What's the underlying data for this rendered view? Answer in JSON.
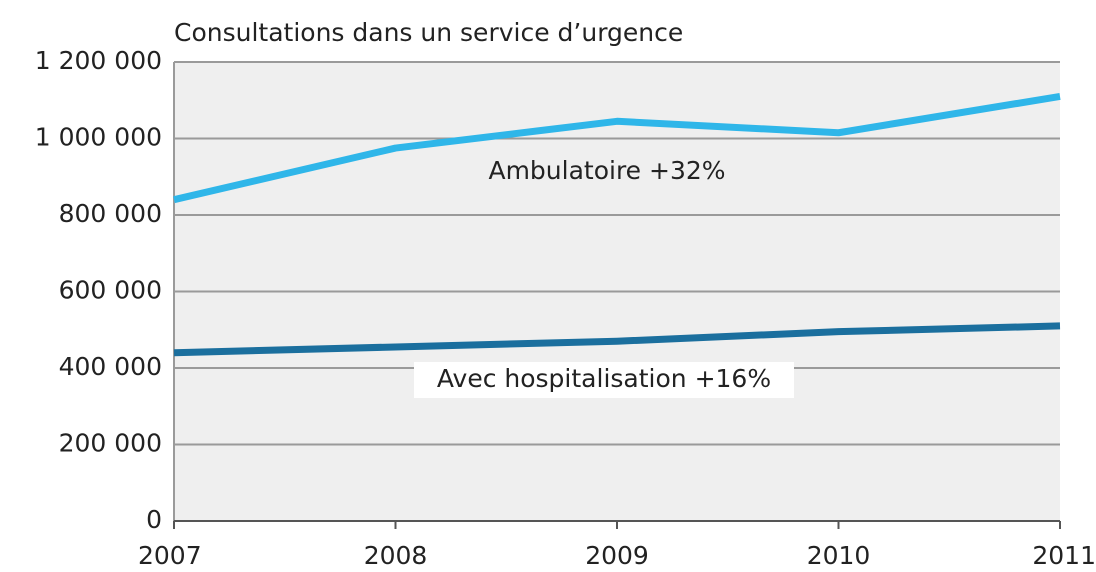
{
  "chart_data": {
    "type": "line",
    "title": "Consultations dans un service d’urgence",
    "categories": [
      "2007",
      "2008",
      "2009",
      "2010",
      "2011"
    ],
    "series": [
      {
        "name": "Ambulatoire +32%",
        "color": "#2fb6e9",
        "values": [
          840000,
          975000,
          1045000,
          1015000,
          1110000
        ]
      },
      {
        "name": "Avec hospitalisation +16%",
        "color": "#1b6f9e",
        "values": [
          440000,
          455000,
          470000,
          495000,
          510000
        ]
      }
    ],
    "ylim": [
      0,
      1200000
    ],
    "yticks": [
      0,
      {
        "value": 200000,
        "label": "200 000"
      },
      {
        "value": 400000,
        "label": "400 000"
      },
      {
        "value": 600000,
        "label": "600 000"
      },
      {
        "value": 800000,
        "label": "800 000"
      },
      {
        "value": 1000000,
        "label": "1 000 000"
      },
      {
        "value": 1200000,
        "label": "1 200 000"
      }
    ],
    "grid": true
  }
}
